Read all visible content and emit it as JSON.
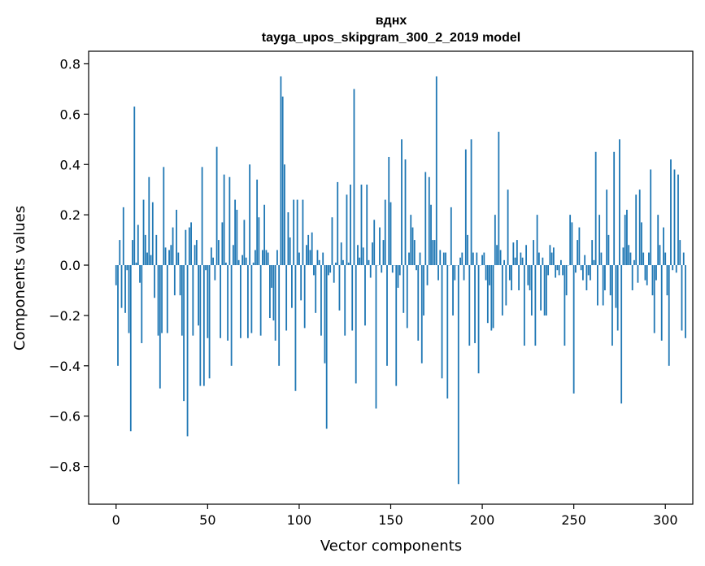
{
  "chart_data": {
    "type": "bar",
    "title": "вднх",
    "subtitle": "tayga_upos_skipgram_300_2_2019 model",
    "xlabel": "Vector components",
    "ylabel": "Components values",
    "xlim": [
      -15,
      315
    ],
    "ylim": [
      -0.95,
      0.85
    ],
    "xticks": [
      0,
      50,
      100,
      150,
      200,
      250,
      300
    ],
    "xtick_labels": [
      "0",
      "50",
      "100",
      "150",
      "200",
      "250",
      "300"
    ],
    "yticks": [
      -0.8,
      -0.6,
      -0.4,
      -0.2,
      0.0,
      0.2,
      0.4,
      0.6,
      0.8
    ],
    "ytick_labels": [
      "−0.8",
      "−0.6",
      "−0.4",
      "−0.2",
      "0.0",
      "0.2",
      "0.4",
      "0.6",
      "0.8"
    ],
    "grid": false,
    "bar_color": "#1f77b4",
    "x_start": 0,
    "values": [
      -0.08,
      -0.4,
      0.1,
      -0.17,
      0.23,
      -0.19,
      -0.02,
      -0.27,
      -0.66,
      0.1,
      0.63,
      0.01,
      0.16,
      -0.07,
      -0.31,
      0.26,
      0.12,
      0.05,
      0.35,
      0.04,
      0.25,
      -0.13,
      0.12,
      -0.28,
      -0.49,
      -0.27,
      0.39,
      0.07,
      -0.27,
      0.06,
      0.08,
      0.15,
      -0.12,
      0.22,
      0.05,
      -0.12,
      -0.28,
      -0.54,
      0.14,
      -0.68,
      0.15,
      0.17,
      -0.28,
      0.08,
      0.1,
      -0.24,
      -0.48,
      0.39,
      -0.48,
      -0.02,
      -0.29,
      -0.45,
      0.07,
      0.03,
      -0.06,
      0.47,
      0.1,
      -0.29,
      0.17,
      0.36,
      0.01,
      -0.3,
      0.35,
      -0.4,
      0.08,
      0.26,
      0.22,
      0.02,
      -0.29,
      0.04,
      0.18,
      0.03,
      -0.29,
      0.4,
      -0.27,
      0.01,
      0.06,
      0.34,
      0.19,
      -0.28,
      0.06,
      0.24,
      0.06,
      0.05,
      -0.21,
      -0.09,
      -0.22,
      -0.3,
      0.06,
      -0.4,
      0.75,
      0.67,
      0.4,
      -0.26,
      0.21,
      0.11,
      -0.17,
      0.26,
      -0.5,
      0.26,
      0.05,
      -0.14,
      0.26,
      -0.25,
      0.08,
      0.12,
      0.06,
      0.13,
      -0.04,
      -0.19,
      0.06,
      0.02,
      -0.28,
      0.05,
      -0.39,
      -0.65,
      -0.04,
      -0.03,
      0.19,
      -0.07,
      0.01,
      0.33,
      -0.18,
      0.09,
      0.02,
      -0.28,
      0.28,
      0.01,
      0.32,
      -0.26,
      0.7,
      -0.47,
      0.08,
      0.03,
      0.32,
      0.07,
      -0.24,
      0.32,
      0.02,
      -0.05,
      0.09,
      0.18,
      -0.57,
      0.0,
      0.15,
      -0.03,
      0.1,
      0.26,
      -0.4,
      0.43,
      0.25,
      -0.03,
      0.0,
      -0.48,
      -0.09,
      -0.04,
      0.5,
      -0.19,
      0.42,
      -0.25,
      0.05,
      0.2,
      0.15,
      0.1,
      -0.02,
      -0.3,
      0.05,
      -0.39,
      -0.2,
      0.37,
      -0.08,
      0.35,
      0.24,
      0.1,
      0.1,
      0.75,
      -0.06,
      0.06,
      -0.45,
      0.05,
      0.05,
      -0.53,
      0.0,
      0.23,
      -0.2,
      -0.06,
      0.0,
      -0.87,
      0.03,
      0.05,
      -0.06,
      0.46,
      0.12,
      -0.32,
      0.5,
      0.05,
      -0.31,
      0.05,
      -0.43,
      0.0,
      0.04,
      0.05,
      -0.06,
      -0.23,
      -0.08,
      -0.26,
      -0.25,
      0.2,
      0.08,
      0.53,
      0.06,
      -0.2,
      0.02,
      -0.16,
      0.3,
      -0.06,
      -0.1,
      0.09,
      0.03,
      0.1,
      -0.1,
      0.05,
      0.03,
      -0.32,
      0.08,
      -0.08,
      -0.1,
      -0.2,
      0.1,
      -0.32,
      0.2,
      0.05,
      -0.18,
      0.03,
      -0.2,
      -0.2,
      -0.04,
      0.08,
      0.05,
      0.07,
      -0.05,
      -0.02,
      -0.04,
      0.02,
      -0.04,
      -0.32,
      -0.12,
      0.0,
      0.2,
      0.17,
      -0.51,
      -0.03,
      0.1,
      0.15,
      -0.02,
      -0.06,
      0.04,
      -0.1,
      -0.04,
      -0.06,
      0.1,
      0.02,
      0.45,
      -0.16,
      0.2,
      0.05,
      -0.16,
      -0.1,
      0.3,
      0.12,
      -0.12,
      -0.32,
      0.45,
      -0.17,
      -0.26,
      0.5,
      -0.55,
      0.07,
      0.2,
      0.22,
      0.08,
      0.05,
      -0.1,
      0.02,
      0.28,
      -0.07,
      0.3,
      0.17,
      0.05,
      -0.06,
      -0.08,
      0.05,
      0.38,
      -0.12,
      -0.27,
      -0.06,
      0.2,
      0.08,
      -0.3,
      0.15,
      0.05,
      -0.12,
      -0.4,
      0.42,
      -0.02,
      0.38,
      -0.03,
      0.36,
      0.1,
      -0.26,
      0.05,
      -0.29
    ]
  }
}
